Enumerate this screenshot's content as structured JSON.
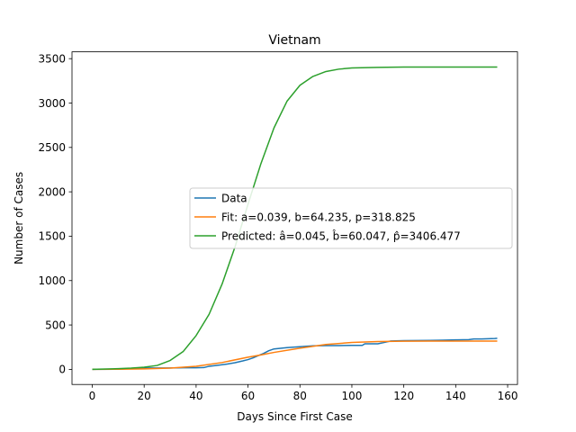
{
  "chart_data": {
    "type": "line",
    "title": "Vietnam",
    "xlabel": "Days Since First Case",
    "ylabel": "Number of Cases",
    "xlim": [
      -7.8,
      163.8
    ],
    "ylim": [
      -170.3,
      3576.8
    ],
    "xticks": [
      0,
      20,
      40,
      60,
      80,
      100,
      120,
      140,
      160
    ],
    "yticks": [
      0,
      500,
      1000,
      1500,
      2000,
      2500,
      3000,
      3500
    ],
    "grid": false,
    "legend_position": "center-right",
    "series": [
      {
        "name": "Data",
        "color": "#1f77b4",
        "x": [
          0,
          10,
          20,
          25,
          30,
          35,
          40,
          43,
          45,
          48,
          52,
          55,
          58,
          60,
          62,
          64,
          66,
          68,
          70,
          75,
          80,
          85,
          90,
          95,
          100,
          104,
          105,
          110,
          112,
          115,
          120,
          125,
          130,
          135,
          140,
          145,
          147,
          150,
          155,
          156
        ],
        "y": [
          0,
          2,
          16,
          16,
          16,
          18,
          18,
          20,
          35,
          45,
          60,
          75,
          95,
          110,
          130,
          155,
          180,
          210,
          230,
          245,
          255,
          265,
          268,
          268,
          270,
          270,
          288,
          288,
          300,
          320,
          323,
          325,
          326,
          328,
          332,
          335,
          342,
          342,
          348,
          350
        ]
      },
      {
        "name": "Fit: a=0.039, b=64.235, p=318.825",
        "color": "#ff7f0e",
        "x": [
          0,
          10,
          20,
          30,
          40,
          50,
          60,
          65,
          70,
          80,
          90,
          100,
          110,
          120,
          130,
          140,
          150,
          156
        ],
        "y": [
          0.0,
          1.6,
          5.5,
          13.6,
          34.6,
          77.0,
          137.0,
          162.0,
          191.0,
          239.0,
          280.0,
          303.0,
          313.0,
          317.0,
          318.3,
          318.6,
          318.8,
          318.8
        ]
      },
      {
        "name": "Predicted: â=0.045, b̂=60.047, p̂=3406.477",
        "color": "#2ca02c",
        "x": [
          0,
          10,
          15,
          20,
          25,
          30,
          35,
          40,
          45,
          50,
          55,
          60,
          65,
          70,
          75,
          80,
          85,
          90,
          95,
          100,
          110,
          120,
          130,
          140,
          150,
          156
        ],
        "y": [
          0,
          8,
          14,
          24,
          44,
          100,
          200,
          380,
          620,
          960,
          1380,
          1860,
          2320,
          2720,
          3020,
          3200,
          3300,
          3355,
          3382,
          3395,
          3402,
          3405,
          3406,
          3406,
          3406,
          3406
        ]
      }
    ]
  }
}
